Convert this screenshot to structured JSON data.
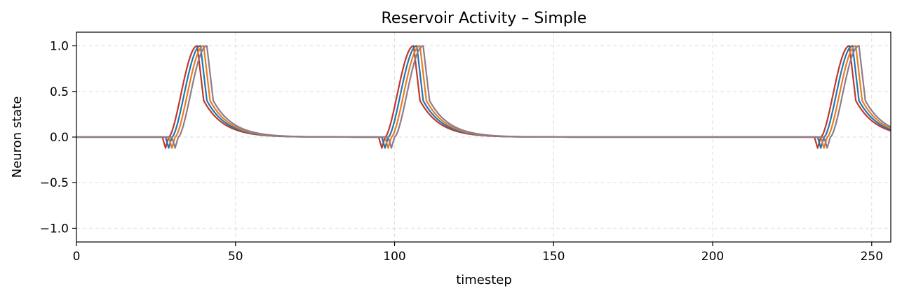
{
  "chart_data": {
    "type": "line",
    "title": "Reservoir Activity – Simple",
    "xlabel": "timestep",
    "ylabel": "Neuron state",
    "xlim": [
      0,
      256
    ],
    "ylim": [
      -1.15,
      1.15
    ],
    "xticks": [
      0,
      50,
      100,
      150,
      200,
      250
    ],
    "xtick_labels": [
      "0",
      "50",
      "100",
      "150",
      "200",
      "250"
    ],
    "yticks": [
      -1.0,
      -0.5,
      0.0,
      0.5,
      1.0
    ],
    "ytick_labels": [
      "−1.0",
      "−0.5",
      "0.0",
      "0.5",
      "1.0"
    ],
    "grid": true,
    "legend": "none",
    "spike_starts": [
      27,
      95,
      232
    ],
    "series": [
      {
        "color": "#c0392b",
        "delay": 0,
        "peak_offset": 10
      },
      {
        "color": "#1f77b4",
        "delay": 1,
        "peak_offset": 10
      },
      {
        "color": "#e67e22",
        "delay": 2,
        "peak_offset": 10
      },
      {
        "color": "#8e7b8e",
        "delay": 3,
        "peak_offset": 10
      }
    ],
    "dip_value": -0.12,
    "decay_rate": 0.16,
    "step": 0.25
  }
}
